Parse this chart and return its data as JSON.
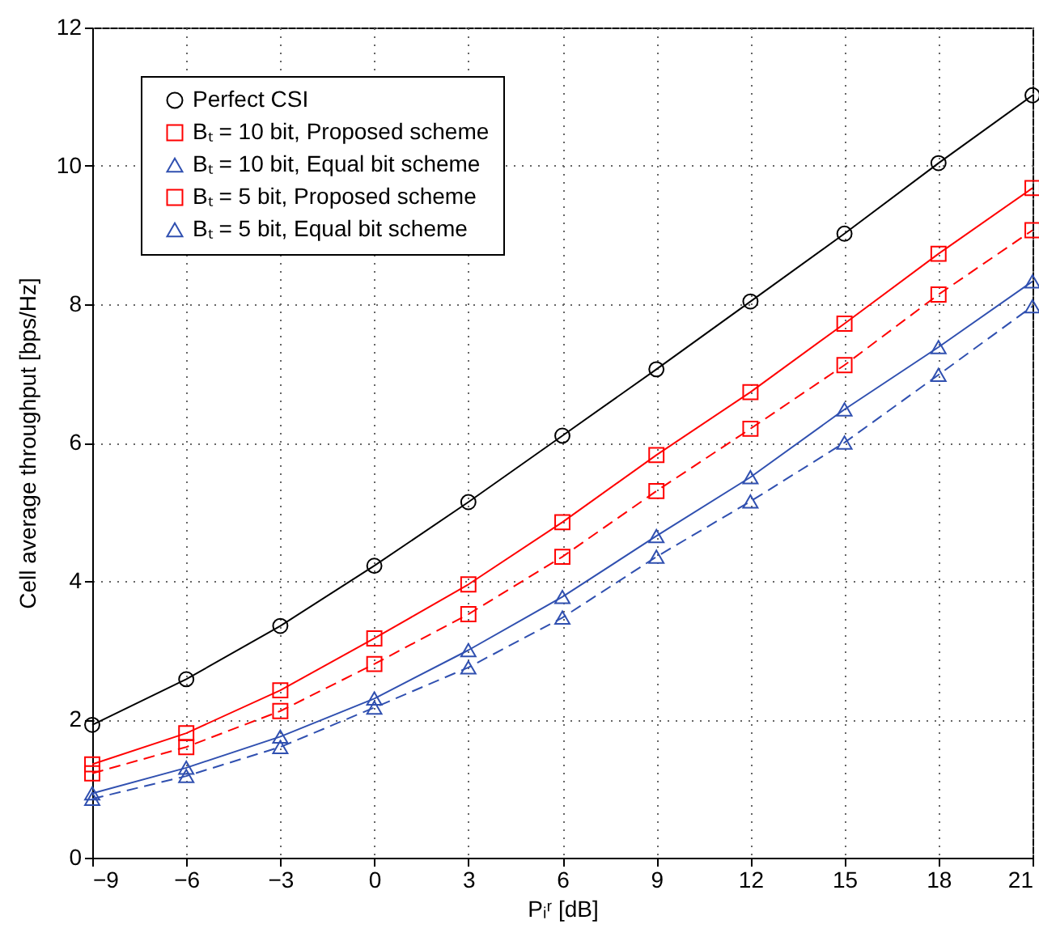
{
  "chart_data": {
    "type": "line",
    "xlabel": "Pᵢʳ [dB]",
    "ylabel": "Cell average throughput [bps/Hz]",
    "x": [
      -9,
      -6,
      -3,
      0,
      3,
      6,
      9,
      12,
      15,
      18,
      21
    ],
    "xlim": [
      -9,
      21
    ],
    "xticks": [
      -9,
      -6,
      -3,
      0,
      3,
      6,
      9,
      12,
      15,
      18,
      21
    ],
    "ylim": [
      0,
      12
    ],
    "yticks": [
      0,
      2,
      4,
      6,
      8,
      10,
      12
    ],
    "grid": true,
    "legend": "top left",
    "series": [
      {
        "name": "Perfect CSI",
        "color": "#000000",
        "marker": "circle",
        "line_style": "solid",
        "values": [
          1.92,
          2.58,
          3.35,
          4.22,
          5.14,
          6.1,
          7.06,
          8.04,
          9.02,
          10.04,
          11.02
        ]
      },
      {
        "name": "Bₜ = 10 bit, Proposed scheme",
        "color": "#ff0000",
        "marker": "square",
        "line_style": "solid",
        "values": [
          1.35,
          1.8,
          2.42,
          3.17,
          3.95,
          4.85,
          5.82,
          6.73,
          7.72,
          8.73,
          9.68
        ]
      },
      {
        "name": "Bₜ = 10 bit, Equal bit scheme",
        "color": "#3050b0",
        "marker": "triangle",
        "line_style": "solid",
        "values": [
          0.93,
          1.3,
          1.75,
          2.3,
          3.0,
          3.77,
          4.65,
          5.5,
          6.48,
          7.38,
          8.33
        ]
      },
      {
        "name": "Bₜ = 5 bit, Proposed scheme",
        "color": "#ff0000",
        "marker": "square",
        "line_style": "dashed",
        "values": [
          1.22,
          1.6,
          2.12,
          2.8,
          3.52,
          4.35,
          5.3,
          6.2,
          7.12,
          8.14,
          9.07
        ]
      },
      {
        "name": "Bₜ = 5 bit, Equal bit scheme",
        "color": "#3050b0",
        "marker": "triangle",
        "line_style": "dashed",
        "values": [
          0.85,
          1.18,
          1.6,
          2.17,
          2.75,
          3.47,
          4.35,
          5.15,
          6.0,
          6.98,
          7.97
        ]
      }
    ]
  }
}
